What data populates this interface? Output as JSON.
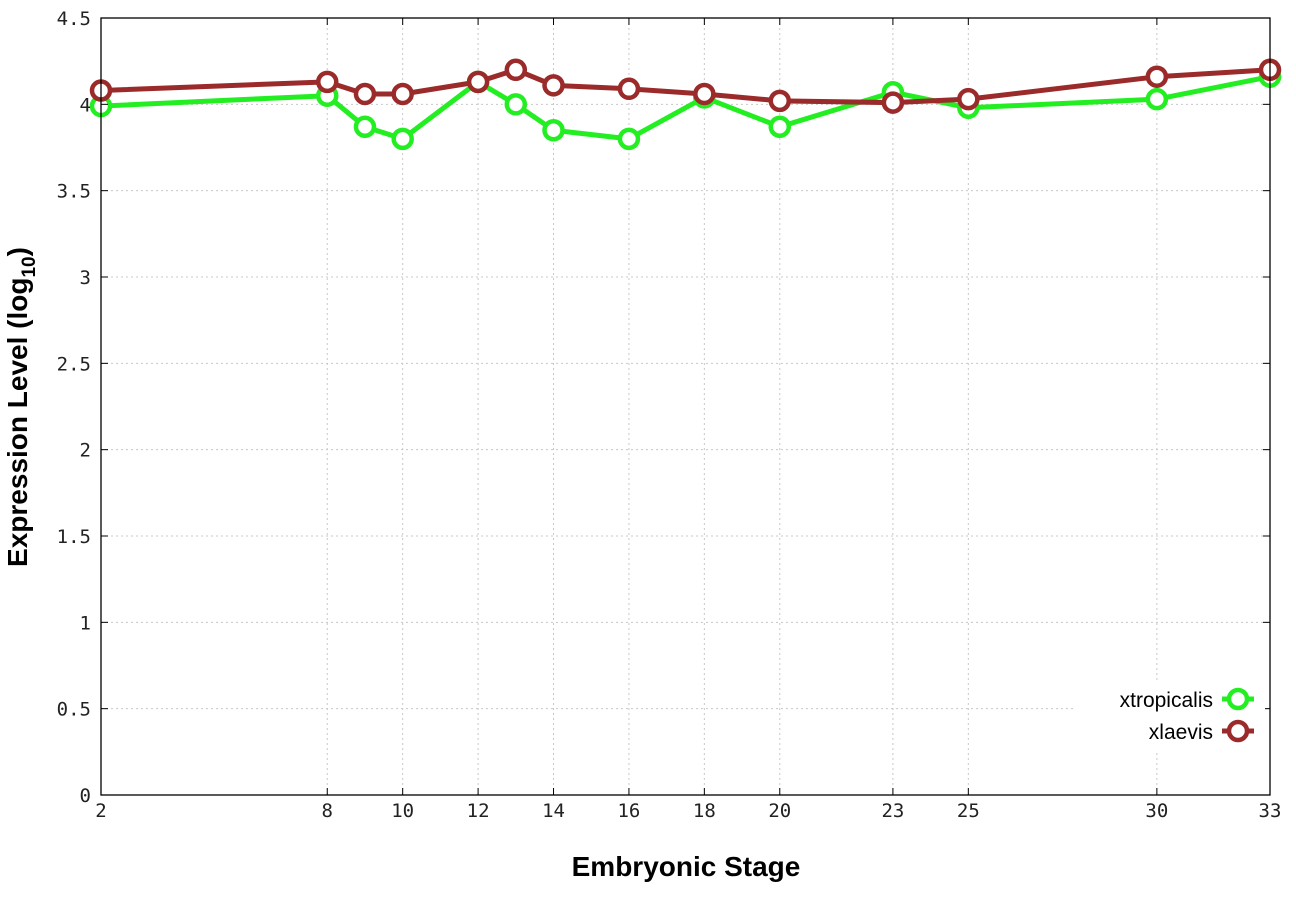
{
  "chart_data": {
    "type": "line",
    "xlabel": "Embryonic Stage",
    "ylabel": "Expression Level (log",
    "ylabel_subscript": "10",
    "ylabel_close": ")",
    "x": [
      2,
      8,
      9,
      10,
      12,
      13,
      14,
      16,
      18,
      20,
      23,
      25,
      30,
      33
    ],
    "x_ticks": [
      "2",
      "8",
      "10",
      "12",
      "14",
      "16",
      "18",
      "20",
      "23",
      "25",
      "30",
      "33"
    ],
    "y_ticks": [
      "0",
      "0.5",
      "1",
      "1.5",
      "2",
      "2.5",
      "3",
      "3.5",
      "4",
      "4.5"
    ],
    "ylim": [
      0,
      4.5
    ],
    "grid": true,
    "legend_position": "bottom-right",
    "series": [
      {
        "name": "xtropicalis",
        "color": "#22ee22",
        "marker": "circle",
        "values": [
          3.99,
          4.05,
          3.87,
          3.8,
          4.13,
          4.0,
          3.85,
          3.8,
          4.04,
          3.87,
          4.07,
          3.98,
          4.03,
          4.16
        ]
      },
      {
        "name": "xlaevis",
        "color": "#9b2a2a",
        "marker": "circle",
        "values": [
          4.08,
          4.13,
          4.06,
          4.06,
          4.13,
          4.2,
          4.11,
          4.09,
          4.06,
          4.02,
          4.01,
          4.03,
          4.16,
          4.2
        ]
      }
    ]
  }
}
